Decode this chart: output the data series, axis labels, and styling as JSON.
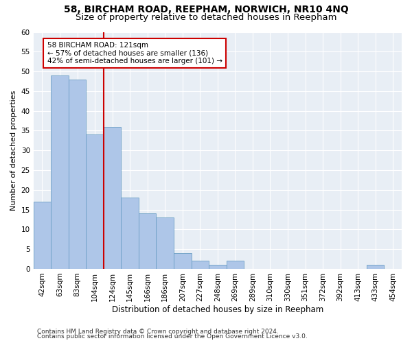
{
  "title1": "58, BIRCHAM ROAD, REEPHAM, NORWICH, NR10 4NQ",
  "title2": "Size of property relative to detached houses in Reepham",
  "xlabel": "Distribution of detached houses by size in Reepham",
  "ylabel": "Number of detached properties",
  "categories": [
    "42sqm",
    "63sqm",
    "83sqm",
    "104sqm",
    "124sqm",
    "145sqm",
    "166sqm",
    "186sqm",
    "207sqm",
    "227sqm",
    "248sqm",
    "269sqm",
    "289sqm",
    "310sqm",
    "330sqm",
    "351sqm",
    "372sqm",
    "392sqm",
    "413sqm",
    "433sqm",
    "454sqm"
  ],
  "values": [
    17,
    49,
    48,
    34,
    36,
    18,
    14,
    13,
    4,
    2,
    1,
    2,
    0,
    0,
    0,
    0,
    0,
    0,
    0,
    1,
    0
  ],
  "bar_color": "#aec6e8",
  "bar_edge_color": "#6a9ec4",
  "property_line_index": 4,
  "property_line_color": "#cc0000",
  "annotation_box_color": "#cc0000",
  "annotation_line1": "58 BIRCHAM ROAD: 121sqm",
  "annotation_line2": "← 57% of detached houses are smaller (136)",
  "annotation_line3": "42% of semi-detached houses are larger (101) →",
  "ylim": [
    0,
    60
  ],
  "yticks": [
    0,
    5,
    10,
    15,
    20,
    25,
    30,
    35,
    40,
    45,
    50,
    55,
    60
  ],
  "background_color": "#e8eef5",
  "grid_color": "#ffffff",
  "footer1": "Contains HM Land Registry data © Crown copyright and database right 2024.",
  "footer2": "Contains public sector information licensed under the Open Government Licence v3.0.",
  "title1_fontsize": 10,
  "title2_fontsize": 9.5,
  "ylabel_fontsize": 8,
  "xlabel_fontsize": 8.5,
  "tick_fontsize": 7.5,
  "annotation_fontsize": 7.5,
  "footer_fontsize": 6.5
}
